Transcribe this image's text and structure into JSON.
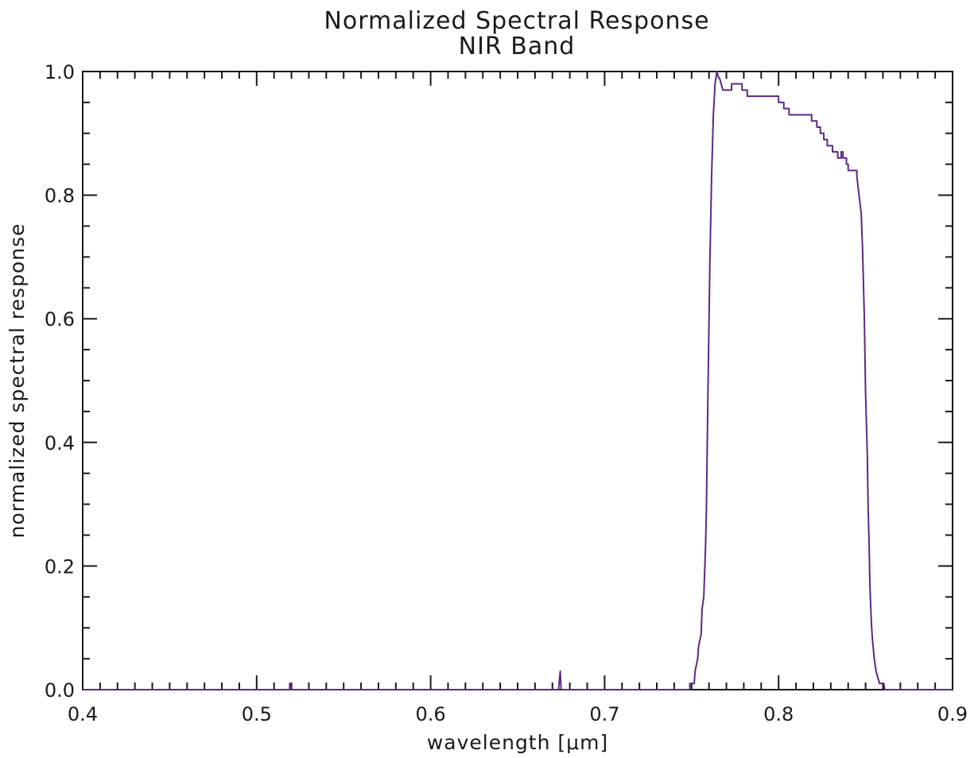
{
  "chart_data": {
    "type": "line",
    "title": "Normalized Spectral Response",
    "subtitle": "NIR Band",
    "xlabel": "wavelength [μm]",
    "ylabel": "normalized spectral response",
    "xlim": [
      0.4,
      0.9
    ],
    "ylim": [
      0.0,
      1.0
    ],
    "x_ticks": [
      0.4,
      0.5,
      0.6,
      0.7,
      0.8,
      0.9
    ],
    "x_tick_labels": [
      "0.4",
      "0.5",
      "0.6",
      "0.7",
      "0.8",
      "0.9"
    ],
    "y_ticks": [
      0.0,
      0.2,
      0.4,
      0.6,
      0.8,
      1.0
    ],
    "y_tick_labels": [
      "0.0",
      "0.2",
      "0.4",
      "0.6",
      "0.8",
      "1.0"
    ],
    "x_minor_step": 0.01,
    "y_minor_step": 0.05,
    "grid": false,
    "line_color": "#5b2a86",
    "series": [
      {
        "x": [
          0.4,
          0.519,
          0.519,
          0.5195,
          0.5195,
          0.52,
          0.52,
          0.6735,
          0.6745,
          0.675,
          0.749,
          0.749,
          0.7515,
          0.752,
          0.7535,
          0.754,
          0.7555,
          0.756,
          0.757,
          0.7575,
          0.758,
          0.7585,
          0.7595,
          0.7605,
          0.7615,
          0.7625,
          0.7635,
          0.7645,
          0.7655,
          0.766,
          0.767,
          0.768,
          0.7685,
          0.769,
          0.773,
          0.773,
          0.779,
          0.779,
          0.782,
          0.782,
          0.8,
          0.8,
          0.803,
          0.803,
          0.806,
          0.806,
          0.819,
          0.819,
          0.822,
          0.822,
          0.824,
          0.824,
          0.826,
          0.826,
          0.828,
          0.828,
          0.831,
          0.831,
          0.834,
          0.834,
          0.836,
          0.836,
          0.837,
          0.837,
          0.839,
          0.839,
          0.84,
          0.84,
          0.841,
          0.841,
          0.843,
          0.843,
          0.845,
          0.845,
          0.8475,
          0.8483,
          0.8493,
          0.85,
          0.851,
          0.8515,
          0.852,
          0.8525,
          0.853,
          0.8535,
          0.854,
          0.855,
          0.856,
          0.857,
          0.858,
          0.859,
          0.8605,
          0.861,
          0.9
        ],
        "y": [
          0.0,
          0.0,
          0.01,
          0.01,
          0.0,
          0.0,
          0.0,
          0.0,
          0.03,
          0.0,
          0.0,
          0.01,
          0.01,
          0.03,
          0.05,
          0.07,
          0.09,
          0.13,
          0.15,
          0.19,
          0.23,
          0.29,
          0.5,
          0.69,
          0.83,
          0.93,
          0.98,
          1.0,
          0.99,
          0.99,
          0.98,
          0.97,
          0.97,
          0.97,
          0.97,
          0.98,
          0.98,
          0.97,
          0.97,
          0.96,
          0.96,
          0.95,
          0.95,
          0.94,
          0.94,
          0.93,
          0.93,
          0.92,
          0.92,
          0.91,
          0.91,
          0.9,
          0.9,
          0.89,
          0.89,
          0.88,
          0.88,
          0.87,
          0.87,
          0.86,
          0.86,
          0.87,
          0.87,
          0.86,
          0.86,
          0.85,
          0.85,
          0.84,
          0.84,
          0.84,
          0.84,
          0.84,
          0.84,
          0.83,
          0.77,
          0.71,
          0.6,
          0.48,
          0.38,
          0.29,
          0.24,
          0.17,
          0.13,
          0.1,
          0.08,
          0.05,
          0.03,
          0.02,
          0.01,
          0.01,
          0.01,
          0.0,
          0.0
        ]
      }
    ]
  }
}
